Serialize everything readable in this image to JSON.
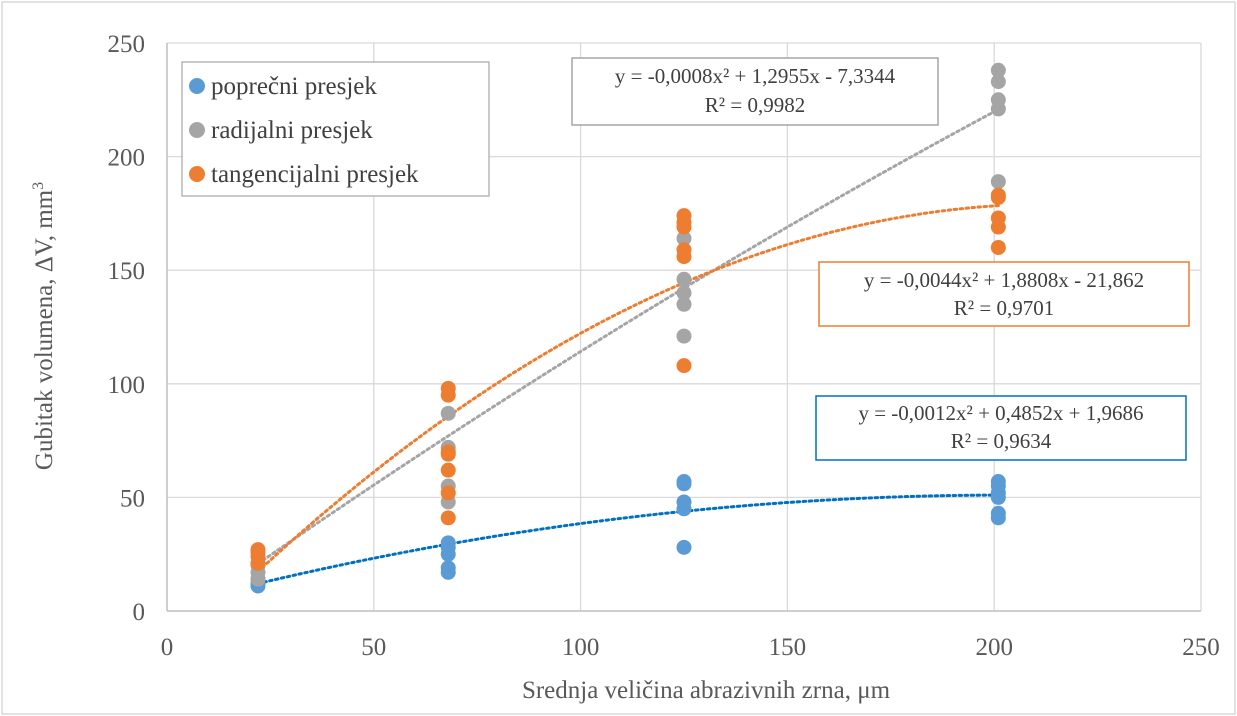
{
  "chart_data": {
    "type": "scatter",
    "xlabel": "Srednja veličina abrazivnih zrna, μm",
    "ylabel": "Gubitak volumena, ΔV, mm",
    "ylabel_sup": "3",
    "xlim": [
      0,
      250
    ],
    "ylim": [
      0,
      250
    ],
    "xticks": [
      "0",
      "50",
      "100",
      "150",
      "200",
      "250"
    ],
    "yticks": [
      "0",
      "50",
      "100",
      "150",
      "200",
      "250"
    ],
    "grid": true,
    "legend_position": "top-left",
    "series": [
      {
        "name": "poprečni presjek",
        "color": "#5B9BD5",
        "trend_color": "#0070C0",
        "x": [
          22,
          22,
          22,
          68,
          68,
          68,
          68,
          68,
          125,
          125,
          125,
          125,
          125,
          201,
          201,
          201,
          201,
          201,
          201
        ],
        "y": [
          11,
          12,
          14,
          17,
          19,
          25,
          28,
          30,
          28,
          45,
          48,
          56,
          57,
          41,
          43,
          50,
          52,
          55,
          57
        ],
        "trend": {
          "a": -0.0012,
          "b": 0.4852,
          "c": 1.9686
        },
        "equation_text": "y = -0,0012x² + 0,4852x + 1,9686",
        "r2_text": "R² = 0,9634"
      },
      {
        "name": "radijalni presjek",
        "color": "#A5A5A5",
        "trend_color": "#A5A5A5",
        "x": [
          22,
          22,
          22,
          68,
          68,
          68,
          68,
          125,
          125,
          125,
          125,
          125,
          201,
          201,
          201,
          201,
          201
        ],
        "y": [
          14,
          17,
          20,
          48,
          55,
          72,
          87,
          121,
          135,
          140,
          146,
          164,
          189,
          221,
          225,
          233,
          238
        ],
        "trend": {
          "a": -0.0008,
          "b": 1.2955,
          "c": -7.3344
        },
        "equation_text": "y = -0,0008x² + 1,2955x - 7,3344",
        "r2_text": "R² = 0,9982"
      },
      {
        "name": "tangencijalni presjek",
        "color": "#ED7D31",
        "trend_color": "#ED7D31",
        "x": [
          22,
          22,
          22,
          22,
          68,
          68,
          68,
          68,
          68,
          68,
          68,
          125,
          125,
          125,
          125,
          125,
          125,
          201,
          201,
          201,
          201,
          201
        ],
        "y": [
          21,
          24,
          26,
          27,
          41,
          52,
          62,
          69,
          70,
          95,
          98,
          108,
          156,
          159,
          169,
          171,
          174,
          160,
          169,
          173,
          182,
          183
        ],
        "trend": {
          "a": -0.0044,
          "b": 1.8808,
          "c": -21.862
        },
        "equation_text": "y = -0,0044x² + 1,8808x - 21,862",
        "r2_text": "R² = 0,9701"
      }
    ]
  }
}
